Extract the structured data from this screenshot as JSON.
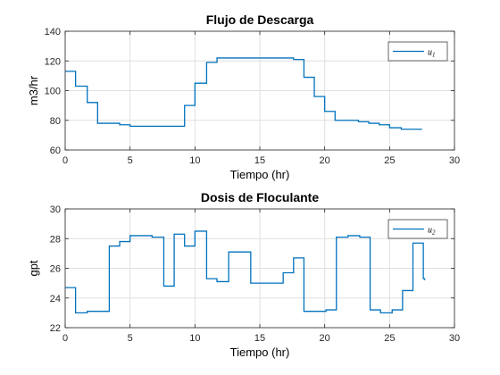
{
  "chart_data": [
    {
      "type": "line",
      "title": "Flujo de Descarga",
      "xlabel": "Tiempo (hr)",
      "ylabel": "m3/hr",
      "xlim": [
        0,
        30
      ],
      "ylim": [
        60,
        140
      ],
      "xticks": [
        0,
        5,
        10,
        15,
        20,
        25,
        30
      ],
      "yticks": [
        60,
        80,
        100,
        120,
        140
      ],
      "grid": true,
      "legend_position": "top-right",
      "color": "#0072BD",
      "series": [
        {
          "name": "u",
          "name_subscript": "1",
          "step": true,
          "x": [
            0,
            0.8,
            1.7,
            2.5,
            4.2,
            5.0,
            9.2,
            10.0,
            10.9,
            11.7,
            13.0,
            17.0,
            17.6,
            18.4,
            19.2,
            20.0,
            20.8,
            21.7,
            22.6,
            23.4,
            24.2,
            25.0,
            25.9,
            26.7,
            27.5
          ],
          "y": [
            113,
            103,
            92,
            78,
            77,
            76,
            90,
            105,
            119,
            122,
            122,
            122,
            121,
            109,
            96,
            86,
            80,
            80,
            79,
            78,
            77,
            75,
            74,
            74,
            74
          ]
        }
      ]
    },
    {
      "type": "line",
      "title": "Dosis de Floculante",
      "xlabel": "Tiempo (hr)",
      "ylabel": "gpt",
      "xlim": [
        0,
        30
      ],
      "ylim": [
        22,
        30
      ],
      "xticks": [
        0,
        5,
        10,
        15,
        20,
        25,
        30
      ],
      "yticks": [
        22,
        24,
        26,
        28,
        30
      ],
      "grid": true,
      "legend_position": "top-right",
      "color": "#0072BD",
      "series": [
        {
          "name": "u",
          "name_subscript": "2",
          "step": true,
          "x": [
            0,
            0.8,
            1.7,
            2.5,
            3.4,
            4.2,
            5.0,
            6.7,
            7.6,
            8.4,
            9.2,
            10.0,
            10.9,
            11.7,
            12.6,
            14.3,
            16.8,
            17.6,
            18.4,
            20.1,
            20.9,
            21.8,
            22.7,
            23.5,
            24.3,
            25.2,
            26.0,
            26.8,
            27.6,
            27.7
          ],
          "y": [
            24.7,
            23.0,
            23.1,
            23.1,
            27.5,
            27.8,
            28.2,
            28.1,
            24.8,
            28.3,
            27.5,
            28.5,
            25.3,
            25.1,
            27.1,
            25.0,
            25.7,
            26.7,
            23.1,
            23.2,
            28.1,
            28.2,
            28.1,
            23.2,
            23.0,
            23.2,
            24.5,
            27.7,
            25.3,
            25.2
          ]
        }
      ]
    }
  ]
}
